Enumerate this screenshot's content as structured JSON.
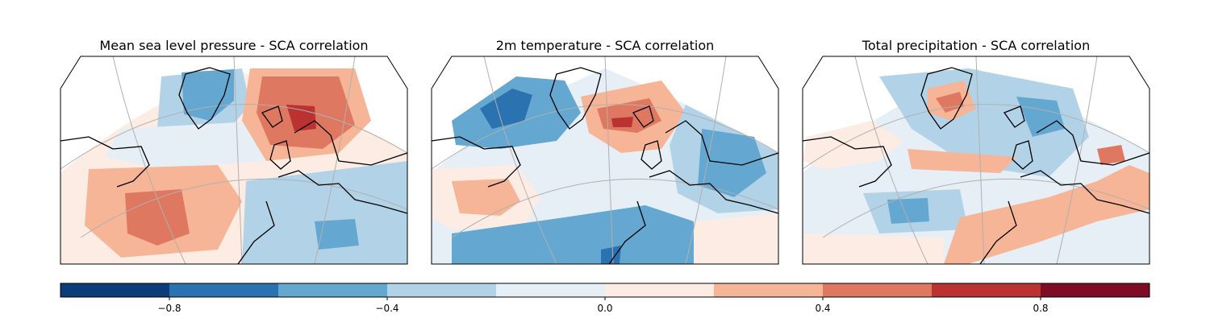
{
  "chart_data": {
    "type": "heatmap",
    "panels": [
      {
        "title": "Mean sea level pressure - SCA correlation"
      },
      {
        "title": "2m temperature - SCA correlation"
      },
      {
        "title": "Total precipitation - SCA correlation"
      }
    ],
    "colorbar": {
      "levels": [
        -1.0,
        -0.8,
        -0.6,
        -0.4,
        -0.2,
        0.0,
        0.2,
        0.4,
        0.6,
        0.8,
        1.0
      ],
      "colors": [
        "#0b3d7a",
        "#2b72b0",
        "#64a7d0",
        "#b2d3e7",
        "#e6eff6",
        "#fcece3",
        "#f6b597",
        "#df7860",
        "#bb3232",
        "#7f0c22"
      ],
      "tick_values": [
        -0.8,
        -0.4,
        0.0,
        0.4,
        0.8
      ],
      "tick_labels": [
        "−0.8",
        "−0.4",
        "0.0",
        "0.4",
        "0.8"
      ],
      "range": [
        -1.0,
        1.0
      ]
    }
  }
}
